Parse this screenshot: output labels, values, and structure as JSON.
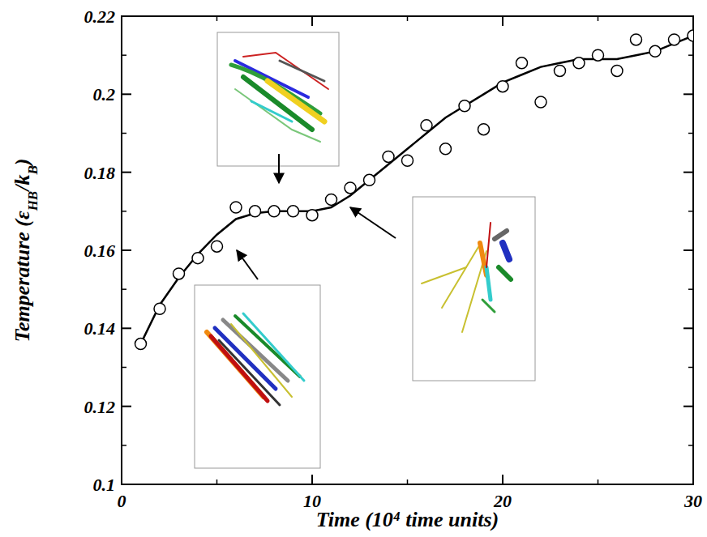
{
  "chart_data": {
    "type": "scatter",
    "x_label": "Time (10⁴ time units)",
    "y_label": "Temperature (εHB/kB)",
    "xlim": [
      0,
      30
    ],
    "xticks": [
      0,
      10,
      20,
      30
    ],
    "ylim": [
      0.1,
      0.22
    ],
    "yticks": [
      0.1,
      0.12,
      0.14,
      0.16,
      0.18,
      0.2,
      0.22
    ],
    "grid": false,
    "series": [
      {
        "type": "scatter",
        "marker": "open-circle",
        "color": "#000000",
        "x": [
          1,
          2,
          3,
          4,
          5,
          6,
          7,
          8,
          9,
          10,
          11,
          12,
          13,
          14,
          15,
          16,
          17,
          18,
          19,
          20,
          21,
          22,
          23,
          24,
          25,
          26,
          27,
          28,
          29,
          30
        ],
        "values": [
          0.136,
          0.145,
          0.154,
          0.158,
          0.161,
          0.171,
          0.17,
          0.17,
          0.17,
          0.169,
          0.173,
          0.176,
          0.178,
          0.184,
          0.183,
          0.192,
          0.186,
          0.197,
          0.191,
          0.202,
          0.208,
          0.198,
          0.206,
          0.208,
          0.21,
          0.206,
          0.214,
          0.211,
          0.214,
          0.215
        ]
      },
      {
        "type": "line",
        "line_style": "solid",
        "color": "#000000",
        "x": [
          1,
          2,
          3,
          4,
          5,
          6,
          7,
          8,
          9,
          10,
          11,
          12,
          13,
          14,
          15,
          16,
          17,
          18,
          19,
          20,
          21,
          22,
          23,
          24,
          25,
          26,
          27,
          28,
          29,
          30
        ],
        "values": [
          0.136,
          0.146,
          0.153,
          0.159,
          0.164,
          0.168,
          0.1695,
          0.17,
          0.17,
          0.17,
          0.171,
          0.174,
          0.178,
          0.182,
          0.186,
          0.19,
          0.194,
          0.197,
          0.2,
          0.203,
          0.205,
          0.207,
          0.208,
          0.209,
          0.209,
          0.209,
          0.21,
          0.211,
          0.213,
          0.215
        ]
      }
    ]
  }
}
